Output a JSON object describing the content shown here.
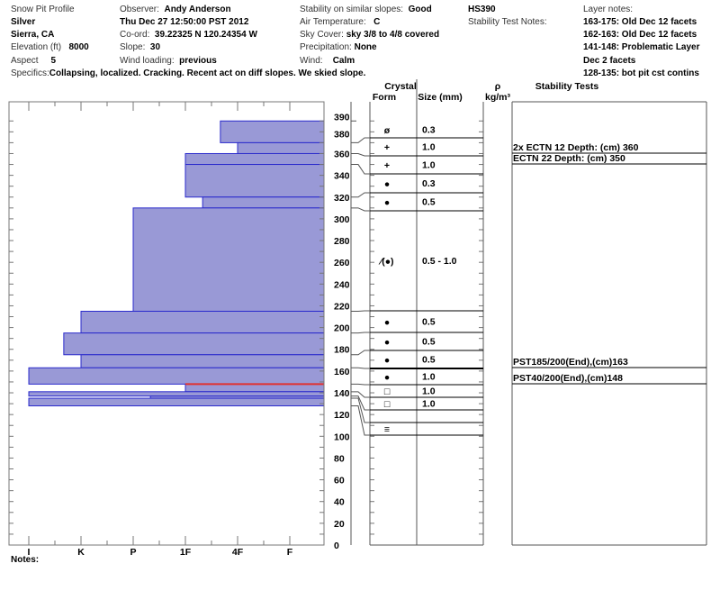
{
  "header": {
    "title": "Snow Pit Profile",
    "location": "Silver",
    "region": "Sierra, CA",
    "elevation_label": "Elevation (ft)",
    "elevation": "8000",
    "aspect_label": "Aspect",
    "aspect": "5",
    "observer_label": "Observer:",
    "observer": "Andy Anderson",
    "datetime": "Thu Dec 27 12:50:00 PST 2012",
    "coord_label": "Co-ord:",
    "coord": "39.22325 N 120.24354 W",
    "slope_label": "Slope:",
    "slope": "30",
    "wind_loading_label": "Wind loading:",
    "wind_loading": "previous",
    "stability_label": "Stability on similar slopes:",
    "stability": "Good",
    "air_temp_label": "Air Temperature:",
    "air_temp": "C",
    "sky_label": "Sky Cover:",
    "sky": "sky 3/8 to 4/8 covered",
    "precip_label": "Precipitation:",
    "precip": "None",
    "wind_label": "Wind:",
    "wind": "Calm",
    "hs": "HS390",
    "stability_notes_label": "Stability Test Notes:",
    "layer_notes_label": "Layer notes:",
    "layer_notes": [
      "163-175: Old Dec 12 facets",
      "162-163: Old Dec 12 facets",
      "141-148: Problematic Layer",
      "Dec 2 facets",
      "128-135: bot pit cst contins"
    ],
    "specifics_label": "Specifics:",
    "specifics": "Collapsing, localized. Cracking. Recent act on diff slopes. We skied slope."
  },
  "columns": {
    "crystal": "Crystal",
    "form": "Form",
    "size": "Size (mm)",
    "density_symbol": "ρ",
    "density_unit": "kg/m³",
    "stability_tests": "Stability Tests"
  },
  "notes_label": "Notes:",
  "colors": {
    "layer_fill": "#9999d6",
    "layer_edge": "#2a2acc",
    "problem_layer": "#e03030"
  },
  "chart_data": {
    "type": "bar",
    "orientation": "horizontal",
    "y_axis": {
      "label": "",
      "range": [
        0,
        390
      ],
      "ticks": [
        0,
        20,
        40,
        60,
        80,
        100,
        120,
        140,
        160,
        180,
        200,
        220,
        240,
        260,
        280,
        300,
        320,
        340,
        360,
        380,
        390
      ]
    },
    "x_axis": {
      "label": "",
      "ticks": [
        "I",
        "K",
        "P",
        "1F",
        "4F",
        "F"
      ]
    },
    "layers": [
      {
        "top": 390,
        "bottom": 370,
        "hardness": "4F+",
        "form": "ø",
        "size": "0.3"
      },
      {
        "top": 370,
        "bottom": 360,
        "hardness": "4F",
        "form": "+",
        "size": "1.0"
      },
      {
        "top": 360,
        "bottom": 350,
        "hardness": "1F",
        "form": "+",
        "size": "1.0"
      },
      {
        "top": 350,
        "bottom": 320,
        "hardness": "1F",
        "form": "●",
        "size": "0.3"
      },
      {
        "top": 320,
        "bottom": 310,
        "hardness": "1F-",
        "form": "●",
        "size": "0.5"
      },
      {
        "top": 310,
        "bottom": 215,
        "hardness": "P",
        "form": "⁄(●)",
        "size": "0.5 - 1.0"
      },
      {
        "top": 215,
        "bottom": 195,
        "hardness": "K",
        "form": "●",
        "size": "0.5"
      },
      {
        "top": 195,
        "bottom": 175,
        "hardness": "K+",
        "form": "●",
        "size": "0.5"
      },
      {
        "top": 175,
        "bottom": 163,
        "hardness": "K",
        "form": "●",
        "size": "0.5"
      },
      {
        "top": 163,
        "bottom": 148,
        "hardness": "I",
        "form": "●",
        "size": "1.0"
      },
      {
        "top": 148,
        "bottom": 141,
        "hardness": "1F",
        "form": "□",
        "size": "1.0"
      },
      {
        "top": 141,
        "bottom": 137,
        "hardness": "I",
        "form": "□",
        "size": "1.0"
      },
      {
        "top": 137,
        "bottom": 135,
        "hardness": "P-",
        "form": "",
        "size": ""
      },
      {
        "top": 135,
        "bottom": 128,
        "hardness": "I",
        "form": "≡",
        "size": ""
      }
    ],
    "problem_layer_depth": 148,
    "stability_tests": [
      {
        "text": "2x ECTN 12  Depth: (cm) 360",
        "depth": 360
      },
      {
        "text": "ECTN 22  Depth: (cm) 350",
        "depth": 350
      },
      {
        "text": "PST185/200(End),(cm)163",
        "depth": 163
      },
      {
        "text": "PST40/200(End),(cm)148",
        "depth": 148
      }
    ]
  }
}
